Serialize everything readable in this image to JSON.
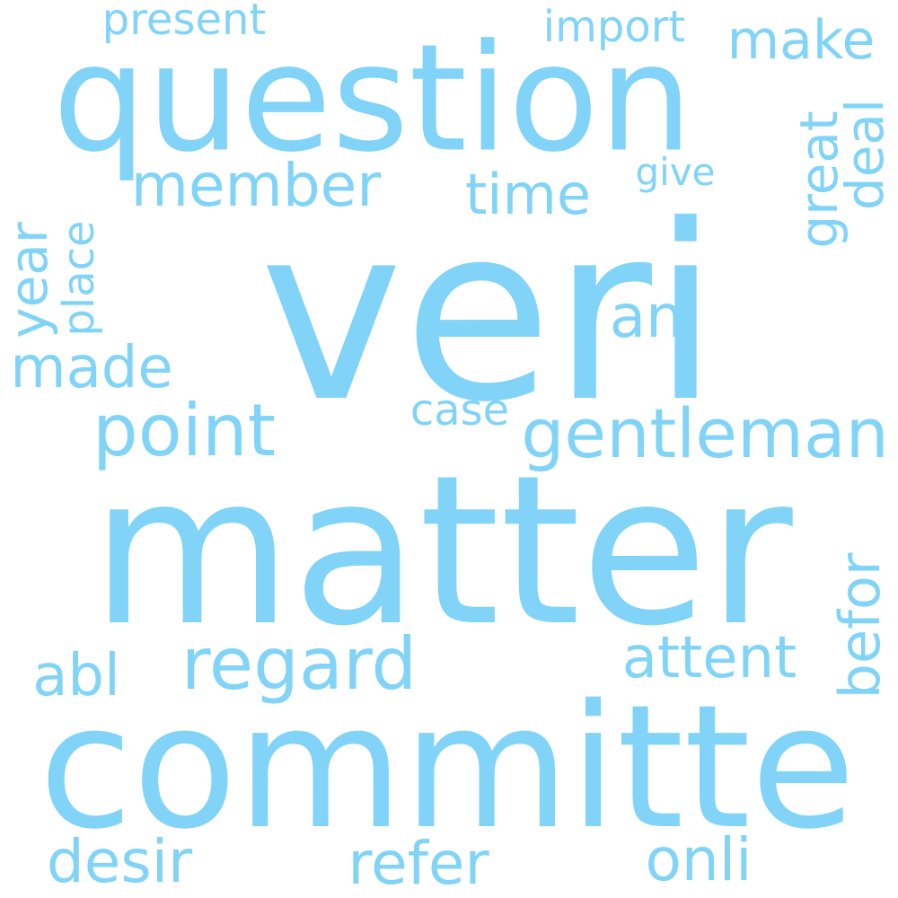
{
  "word_cloud": {
    "color": "#81d4f7",
    "background": "#ffffff",
    "words": {
      "veri": "veri",
      "matter": "matter",
      "committe": "committe",
      "question": "question",
      "gentleman": "gentleman",
      "point": "point",
      "regard": "regard",
      "member": "member",
      "refer": "refer",
      "desir": "desir",
      "onli": "onli",
      "ani": "ani",
      "attent": "attent",
      "made": "made",
      "abl": "abl",
      "time": "time",
      "make": "make",
      "present": "present",
      "import": "import",
      "case": "case",
      "give": "give",
      "befor": "befor",
      "deal": "deal",
      "great": "great",
      "year": "year",
      "place": "place"
    }
  }
}
